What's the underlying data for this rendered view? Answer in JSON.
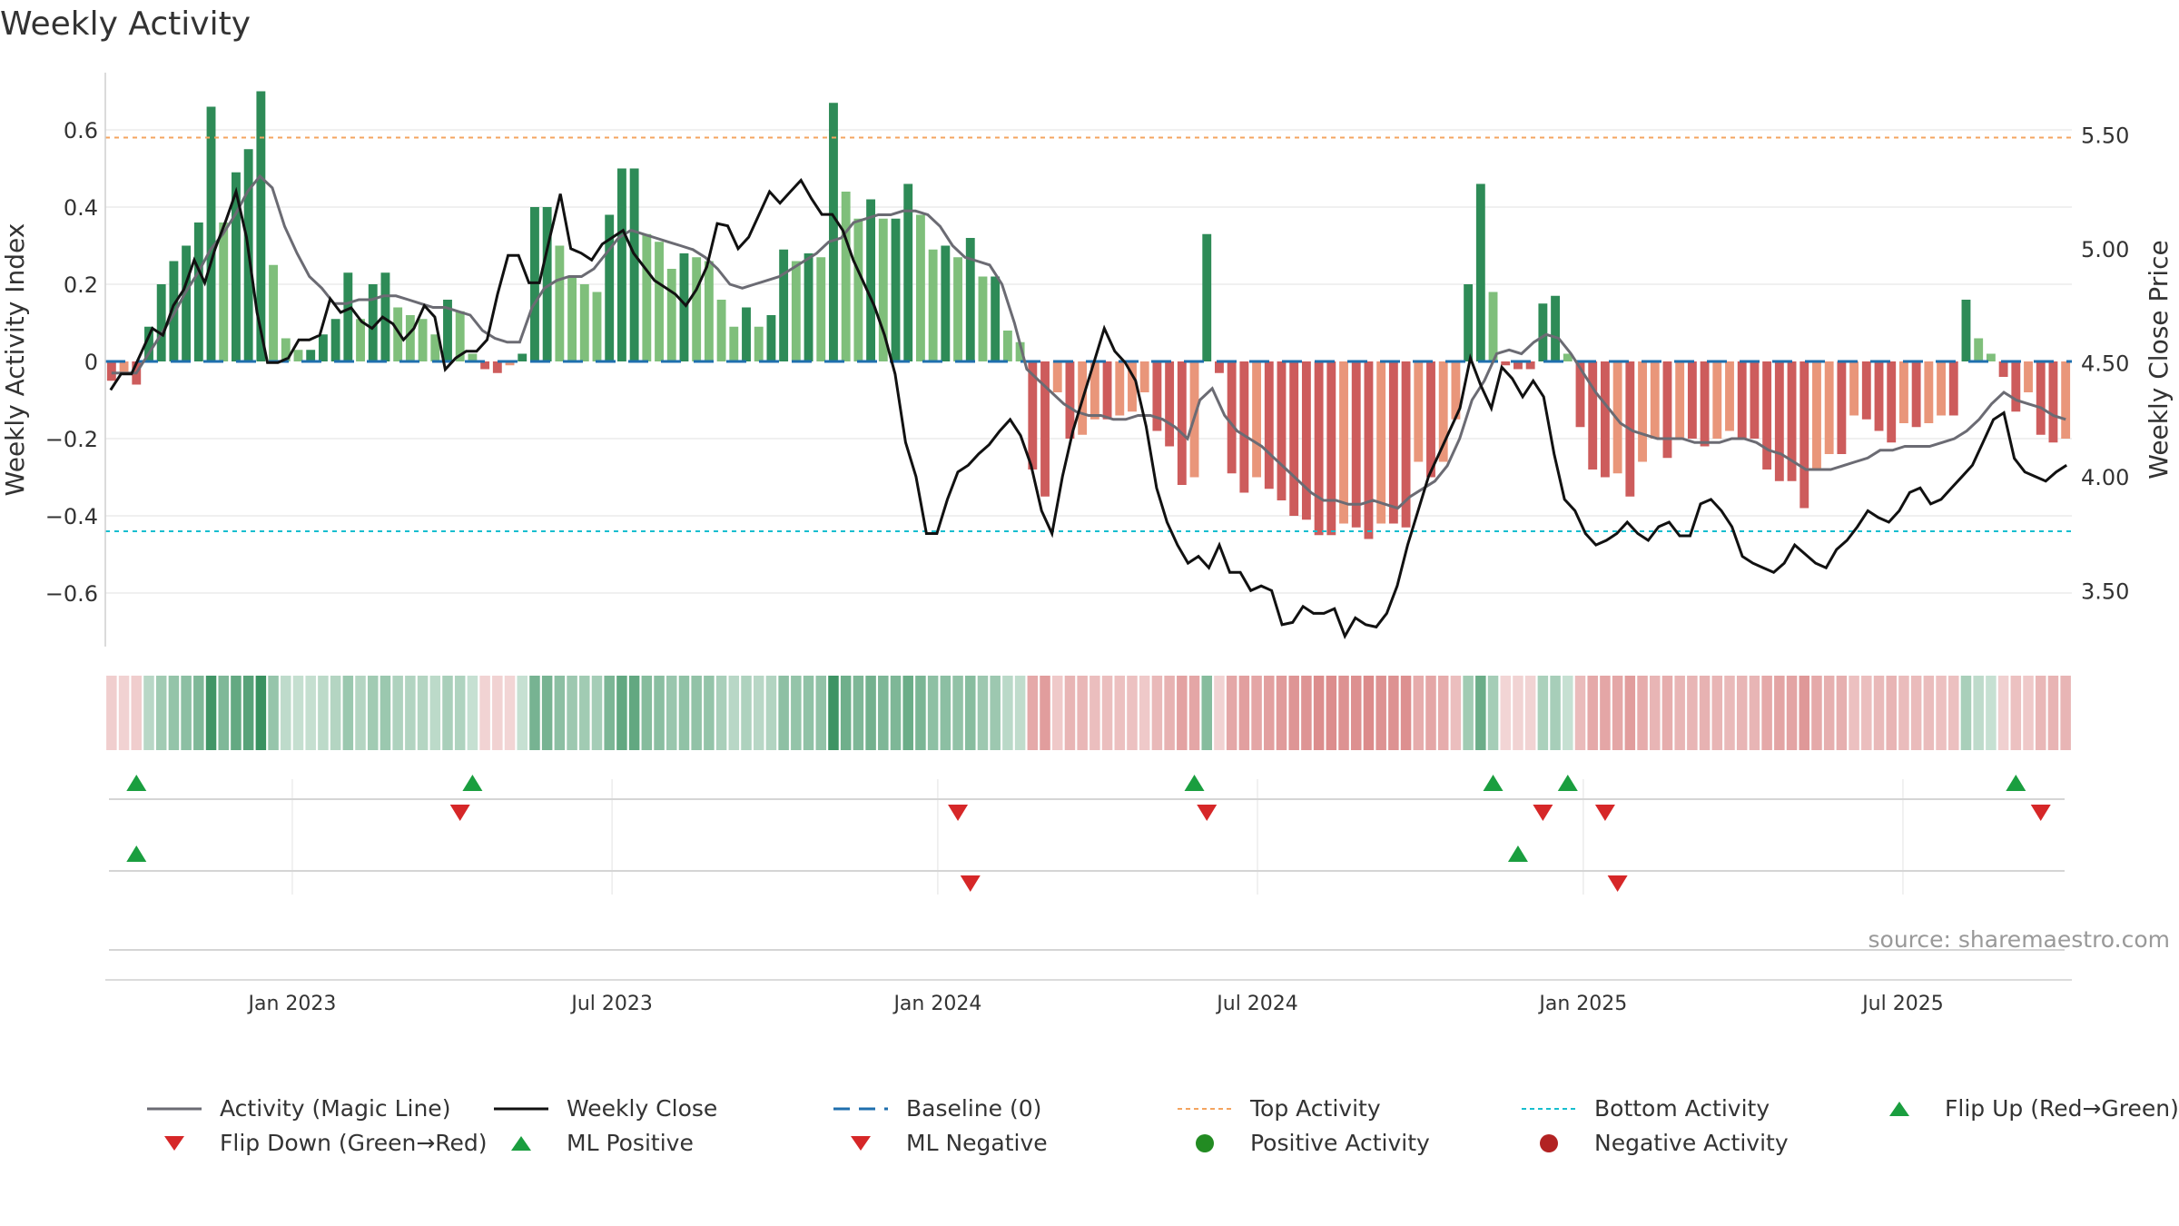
{
  "chart_data": {
    "type": "bar",
    "title": "Weekly Activity",
    "ylabel_left": "Weekly Activity Index",
    "ylabel_right": "Weekly Close Price",
    "source": "source: sharemaestro.com",
    "left_axis": {
      "ylim": [
        -0.75,
        0.75
      ],
      "ticks": [
        0.6,
        0.4,
        0.2,
        0,
        -0.2,
        -0.4,
        -0.6
      ],
      "tick_labels": [
        "0.6",
        "0.4",
        "0.2",
        "0",
        "−0.2",
        "−0.4",
        "−0.6"
      ]
    },
    "right_axis": {
      "ylim": [
        3.25,
        5.78
      ],
      "ticks": [
        5.5,
        5.0,
        4.5,
        4.0,
        3.5
      ],
      "tick_labels": [
        "5.50",
        "5.00",
        "4.50",
        "4.00",
        "3.50"
      ]
    },
    "x_range": [
      0,
      163
    ],
    "x_ticks": [
      {
        "pos": 15.5,
        "label": "Jan 2023"
      },
      {
        "pos": 42,
        "label": "Jul 2023"
      },
      {
        "pos": 69,
        "label": "Jan 2024"
      },
      {
        "pos": 95.5,
        "label": "Jul 2024"
      },
      {
        "pos": 122.5,
        "label": "Jan 2025"
      },
      {
        "pos": 149,
        "label": "Jul 2025"
      }
    ],
    "top_activity": 0.58,
    "bottom_activity": -0.44,
    "baseline": 0,
    "activity": [
      -0.05,
      -0.03,
      -0.06,
      0.09,
      0.2,
      0.26,
      0.3,
      0.36,
      0.66,
      0.36,
      0.49,
      0.55,
      0.7,
      0.25,
      0.06,
      0.03,
      0.03,
      0.07,
      0.11,
      0.23,
      0.11,
      0.2,
      0.23,
      0.14,
      0.12,
      0.11,
      0.07,
      0.16,
      0.13,
      0.02,
      -0.02,
      -0.03,
      -0.01,
      0.02,
      0.4,
      0.4,
      0.3,
      0.22,
      0.2,
      0.18,
      0.38,
      0.5,
      0.5,
      0.33,
      0.31,
      0.24,
      0.28,
      0.27,
      0.26,
      0.16,
      0.09,
      0.14,
      0.09,
      0.12,
      0.29,
      0.26,
      0.28,
      0.27,
      0.67,
      0.44,
      0.37,
      0.42,
      0.37,
      0.37,
      0.46,
      0.38,
      0.29,
      0.3,
      0.27,
      0.32,
      0.22,
      0.22,
      0.08,
      0.05,
      -0.28,
      -0.35,
      -0.08,
      -0.2,
      -0.19,
      -0.15,
      -0.15,
      -0.14,
      -0.13,
      -0.08,
      -0.18,
      -0.22,
      -0.32,
      -0.3,
      0.33,
      -0.03,
      -0.29,
      -0.34,
      -0.3,
      -0.33,
      -0.36,
      -0.4,
      -0.41,
      -0.45,
      -0.45,
      -0.42,
      -0.43,
      -0.46,
      -0.42,
      -0.42,
      -0.43,
      -0.26,
      -0.3,
      -0.26,
      -0.15,
      0.2,
      0.46,
      0.18,
      -0.01,
      -0.02,
      -0.02,
      0.15,
      0.17,
      0.02,
      -0.17,
      -0.28,
      -0.3,
      -0.29,
      -0.35,
      -0.26,
      -0.2,
      -0.25,
      -0.2,
      -0.2,
      -0.22,
      -0.2,
      -0.18,
      -0.2,
      -0.2,
      -0.28,
      -0.31,
      -0.31,
      -0.38,
      -0.28,
      -0.24,
      -0.24,
      -0.14,
      -0.15,
      -0.18,
      -0.21,
      -0.16,
      -0.17,
      -0.16,
      -0.14,
      -0.14,
      0.16,
      0.06,
      0.02,
      -0.04,
      -0.13,
      -0.08,
      -0.19,
      -0.21,
      -0.2
    ],
    "magic_line": [
      -0.03,
      -0.03,
      -0.03,
      0.02,
      0.07,
      0.12,
      0.18,
      0.23,
      0.29,
      0.33,
      0.38,
      0.44,
      0.48,
      0.45,
      0.35,
      0.28,
      0.22,
      0.19,
      0.15,
      0.15,
      0.16,
      0.16,
      0.17,
      0.17,
      0.16,
      0.15,
      0.14,
      0.14,
      0.13,
      0.12,
      0.08,
      0.06,
      0.05,
      0.05,
      0.14,
      0.19,
      0.21,
      0.22,
      0.22,
      0.24,
      0.28,
      0.32,
      0.34,
      0.33,
      0.32,
      0.31,
      0.3,
      0.29,
      0.27,
      0.24,
      0.2,
      0.19,
      0.2,
      0.21,
      0.22,
      0.24,
      0.26,
      0.28,
      0.31,
      0.32,
      0.36,
      0.37,
      0.38,
      0.38,
      0.39,
      0.39,
      0.38,
      0.35,
      0.3,
      0.27,
      0.26,
      0.25,
      0.2,
      0.1,
      -0.02,
      -0.05,
      -0.08,
      -0.11,
      -0.13,
      -0.14,
      -0.14,
      -0.15,
      -0.15,
      -0.14,
      -0.14,
      -0.15,
      -0.17,
      -0.2,
      -0.1,
      -0.07,
      -0.14,
      -0.18,
      -0.2,
      -0.22,
      -0.25,
      -0.28,
      -0.31,
      -0.34,
      -0.36,
      -0.36,
      -0.37,
      -0.37,
      -0.36,
      -0.37,
      -0.38,
      -0.35,
      -0.33,
      -0.31,
      -0.27,
      -0.2,
      -0.1,
      -0.05,
      0.02,
      0.03,
      0.02,
      0.05,
      0.07,
      0.06,
      0.02,
      -0.03,
      -0.08,
      -0.12,
      -0.16,
      -0.18,
      -0.19,
      -0.2,
      -0.2,
      -0.2,
      -0.21,
      -0.21,
      -0.21,
      -0.2,
      -0.2,
      -0.21,
      -0.23,
      -0.24,
      -0.26,
      -0.28,
      -0.28,
      -0.28,
      -0.27,
      -0.26,
      -0.25,
      -0.23,
      -0.23,
      -0.22,
      -0.22,
      -0.22,
      -0.21,
      -0.2,
      -0.18,
      -0.15,
      -0.11,
      -0.08,
      -0.1,
      -0.11,
      -0.12,
      -0.14,
      -0.15
    ],
    "weekly_close": [
      4.38,
      4.45,
      4.45,
      4.55,
      4.65,
      4.62,
      4.75,
      4.82,
      4.95,
      4.85,
      5.0,
      5.12,
      5.25,
      5.05,
      4.72,
      4.5,
      4.5,
      4.52,
      4.6,
      4.6,
      4.62,
      4.78,
      4.72,
      4.74,
      4.68,
      4.65,
      4.7,
      4.67,
      4.6,
      4.65,
      4.75,
      4.7,
      4.47,
      4.52,
      4.55,
      4.55,
      4.6,
      4.8,
      4.97,
      4.97,
      4.85,
      4.85,
      5.05,
      5.24,
      5.0,
      4.98,
      4.95,
      5.02,
      5.05,
      5.08,
      4.98,
      4.92,
      4.86,
      4.83,
      4.8,
      4.75,
      4.82,
      4.92,
      5.11,
      5.1,
      5.0,
      5.05,
      5.15,
      5.25,
      5.2,
      5.25,
      5.3,
      5.22,
      5.15,
      5.15,
      5.08,
      4.95,
      4.85,
      4.75,
      4.62,
      4.45,
      4.15,
      4.0,
      3.75,
      3.75,
      3.9,
      4.02,
      4.05,
      4.1,
      4.14,
      4.2,
      4.25,
      4.18,
      4.05,
      3.85,
      3.75,
      4.0,
      4.2,
      4.35,
      4.5,
      4.65,
      4.55,
      4.5,
      4.42,
      4.22,
      3.95,
      3.8,
      3.7,
      3.62,
      3.65,
      3.6,
      3.7,
      3.58,
      3.58,
      3.5,
      3.52,
      3.5,
      3.35,
      3.36,
      3.43,
      3.4,
      3.4,
      3.42,
      3.3,
      3.38,
      3.35,
      3.34,
      3.4,
      3.52,
      3.7,
      3.85,
      4.0,
      4.1,
      4.2,
      4.3,
      4.52,
      4.4,
      4.3,
      4.48,
      4.43,
      4.35,
      4.42,
      4.35,
      4.1,
      3.9,
      3.85,
      3.75,
      3.7,
      3.72,
      3.75,
      3.8,
      3.75,
      3.72,
      3.78,
      3.8,
      3.74,
      3.74,
      3.88,
      3.9,
      3.85,
      3.78,
      3.65,
      3.62,
      3.6,
      3.58,
      3.62,
      3.7,
      3.66,
      3.62,
      3.6,
      3.68,
      3.72,
      3.78,
      3.85,
      3.82,
      3.8,
      3.85,
      3.93,
      3.95,
      3.88,
      3.9,
      3.95,
      4.0,
      4.05,
      4.15,
      4.25,
      4.28,
      4.08,
      4.02,
      4.0,
      3.98,
      4.02,
      4.05
    ],
    "flip_up": [
      2,
      29,
      87,
      111,
      117,
      153
    ],
    "flip_down": [
      28,
      68,
      88,
      115,
      120,
      155
    ],
    "ml_positive": [
      2,
      113
    ],
    "ml_negative": [
      69,
      121
    ],
    "legend": [
      {
        "label": "Activity (Magic Line)",
        "icon": "gray-line-icon"
      },
      {
        "label": "Weekly Close",
        "icon": "black-line-icon"
      },
      {
        "label": "Baseline (0)",
        "icon": "blue-dashed-line-icon"
      },
      {
        "label": "Top Activity",
        "icon": "orange-dotted-line-icon"
      },
      {
        "label": "Bottom Activity",
        "icon": "cyan-dotted-line-icon"
      },
      {
        "label": "Flip Up (Red→Green)",
        "icon": "green-up-triangle-icon"
      },
      {
        "label": "Flip Down (Green→Red)",
        "icon": "red-down-triangle-icon"
      },
      {
        "label": "ML Positive",
        "icon": "green-up-triangle-icon"
      },
      {
        "label": "ML Negative",
        "icon": "red-down-triangle-icon"
      },
      {
        "label": "Positive Activity",
        "icon": "green-dot-icon"
      },
      {
        "label": "Negative Activity",
        "icon": "red-dot-icon"
      }
    ],
    "colors": {
      "pos_strong": "#2e8b57",
      "pos_light": "#7fbf7b",
      "neg_strong": "#cd5c5c",
      "neg_light": "#e9967a",
      "magic_line": "#6b6b73",
      "close": "#111111",
      "baseline": "#1f6fae",
      "top": "#f4a460",
      "bottom": "#17becf",
      "tri_up": "#1a9e3f",
      "tri_down": "#d62728",
      "dot_pos": "#228b22",
      "dot_neg": "#b22222"
    }
  }
}
